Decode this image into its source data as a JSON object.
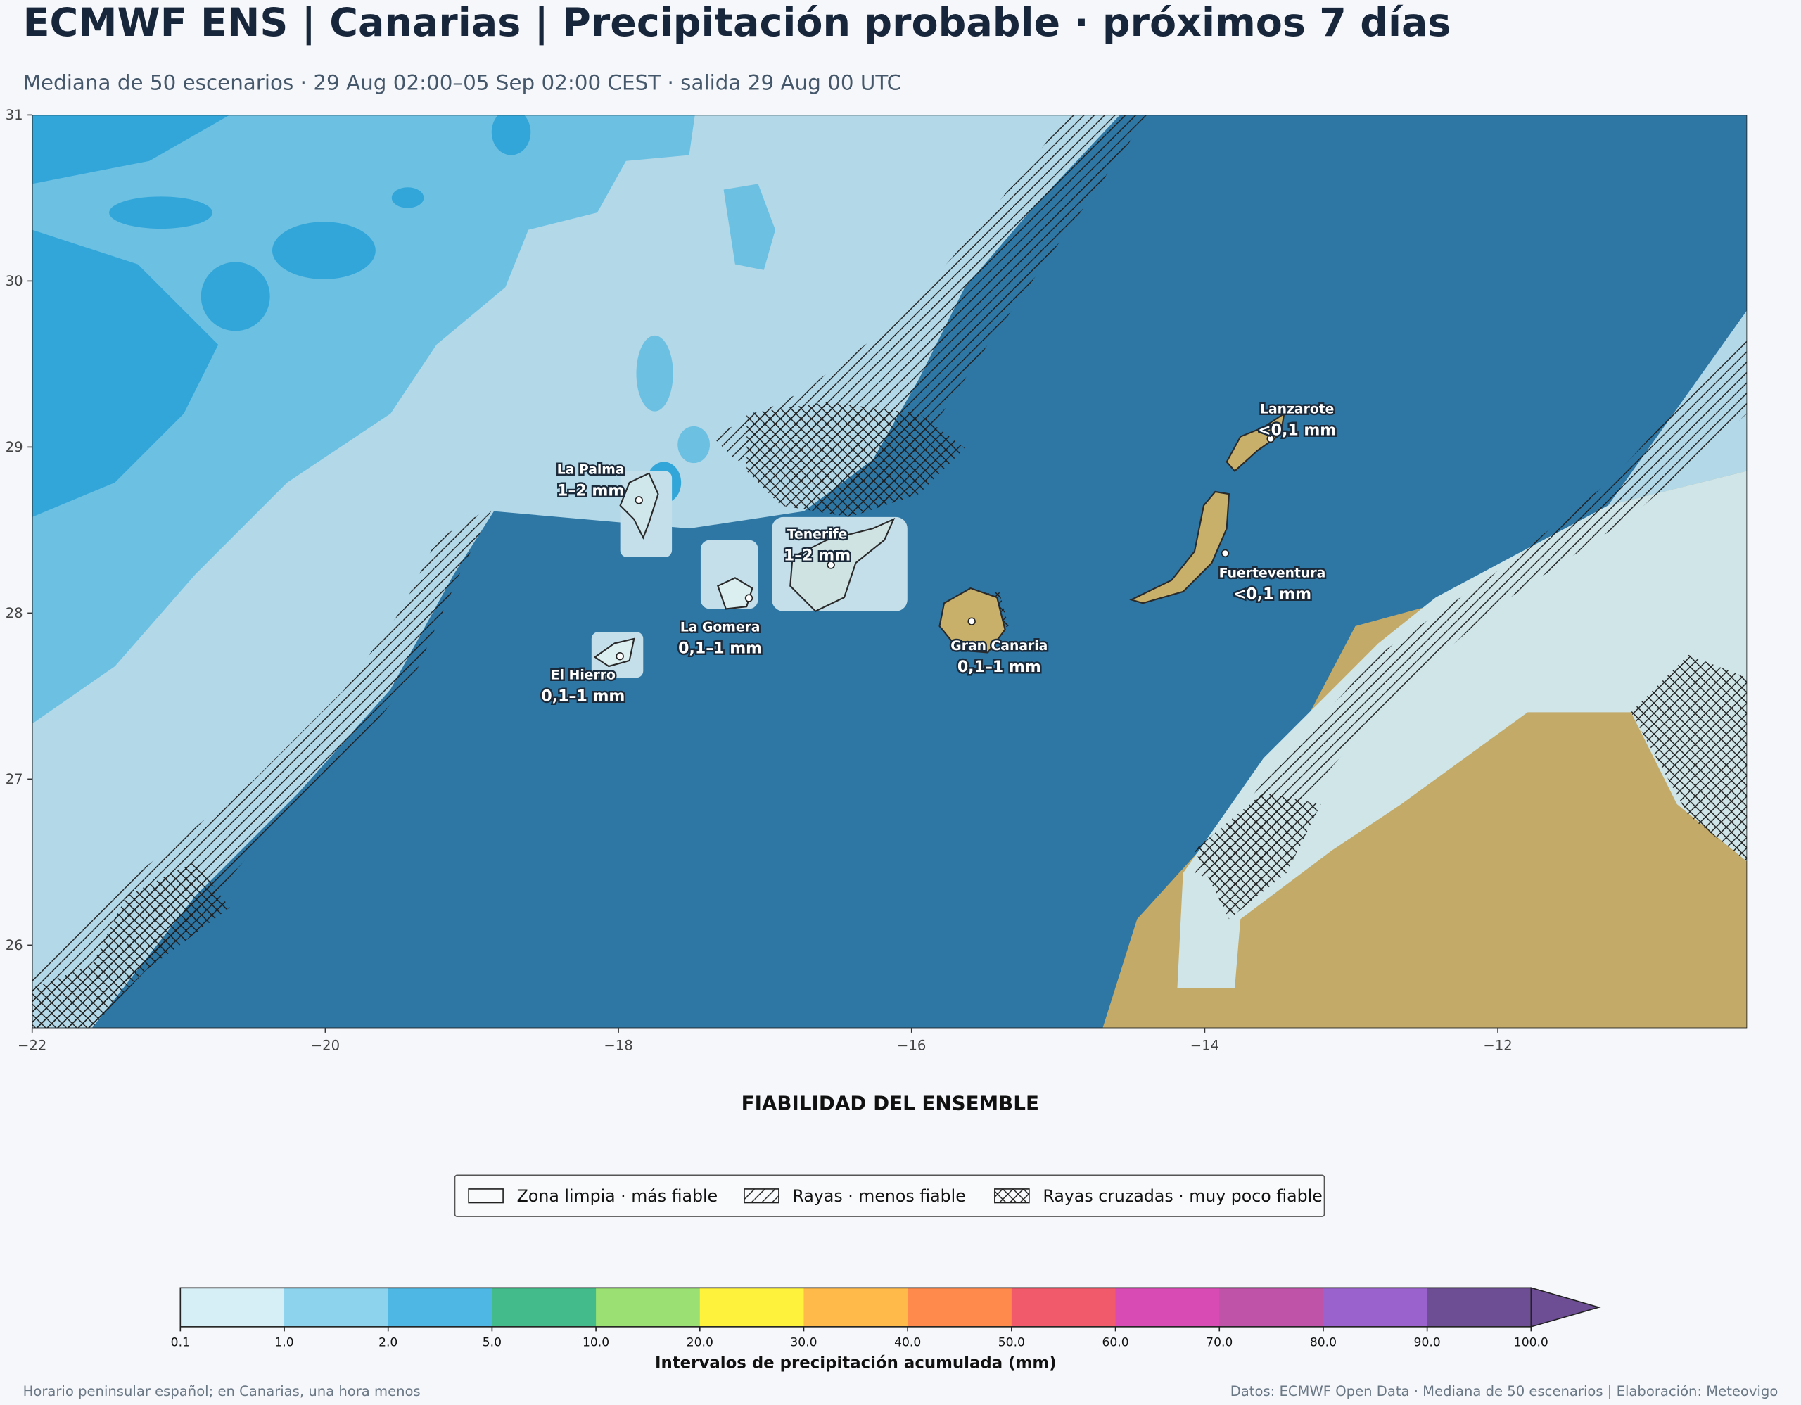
{
  "header": {
    "title": "ECMWF ENS | Canarias | Precipitación probable · próximos 7 días",
    "subtitle": "Mediana de 50 escenarios · 29 Aug 02:00–05 Sep 02:00 CEST · salida 29 Aug 00 UTC"
  },
  "map": {
    "xlim": [
      -22,
      -10.3
    ],
    "ylim": [
      25.5,
      31
    ],
    "xticks": [
      {
        "value": -22,
        "label": "−22"
      },
      {
        "value": -20,
        "label": "−20"
      },
      {
        "value": -18,
        "label": "−18"
      },
      {
        "value": -16,
        "label": "−16"
      },
      {
        "value": -14,
        "label": "−14"
      },
      {
        "value": -12,
        "label": "−12"
      }
    ],
    "yticks": [
      26,
      27,
      28,
      29,
      30,
      31
    ],
    "places": [
      {
        "name": "La Palma",
        "value": "1–2 mm",
        "lon": -17.86,
        "lat": 28.68
      },
      {
        "name": "Tenerife",
        "value": "1–2 mm",
        "lon": -16.55,
        "lat": 28.29
      },
      {
        "name": "La Gomera",
        "value": "0,1–1 mm",
        "lon": -17.11,
        "lat": 28.09
      },
      {
        "name": "El Hierro",
        "value": "0,1–1 mm",
        "lon": -17.99,
        "lat": 27.74
      },
      {
        "name": "Gran Canaria",
        "value": "0,1–1 mm",
        "lon": -15.59,
        "lat": 27.95
      },
      {
        "name": "Lanzarote",
        "value": "<0,1 mm",
        "lon": -13.55,
        "lat": 29.05
      },
      {
        "name": "Fuerteventura",
        "value": "<0,1 mm",
        "lon": -13.86,
        "lat": 28.36
      }
    ]
  },
  "legend": {
    "title": "FIABILIDAD DEL ENSEMBLE",
    "items": [
      "Zona limpia · más fiable",
      "Rayas · menos fiable",
      "Rayas cruzadas · muy poco fiable"
    ]
  },
  "colorbar": {
    "label": "Intervalos de precipitación acumulada (mm)",
    "ticks": [
      0.1,
      {
        "value": 1,
        "label": "1.0"
      },
      {
        "value": 2,
        "label": "2.0"
      },
      {
        "value": 5,
        "label": "5.0"
      },
      {
        "value": 10,
        "label": "10.0"
      },
      {
        "value": 20,
        "label": "20.0"
      },
      {
        "value": 30,
        "label": "30.0"
      },
      {
        "value": 40,
        "label": "40.0"
      },
      {
        "value": 50,
        "label": "50.0"
      },
      {
        "value": 60,
        "label": "60.0"
      },
      {
        "value": 70,
        "label": "70.0"
      },
      {
        "value": 80,
        "label": "80.0"
      },
      {
        "value": 90,
        "label": "90.0"
      },
      {
        "value": 100,
        "label": "100.0"
      }
    ],
    "colors": [
      "#d6eef6",
      "#8dd3ee",
      "#4fb7e3",
      "#43bb8a",
      "#9be072",
      "#fff23c",
      "#ffba4a",
      "#ff8a4c",
      "#f15a6a",
      "#d84bb5",
      "#be53a8",
      "#9a62cc",
      "#6d4e94"
    ]
  },
  "footer": {
    "left": "Horario peninsular español; en Canarias, una hora menos",
    "right": "Datos: ECMWF Open Data · Mediana de 50 escenarios | Elaboración: Meteovigo"
  }
}
